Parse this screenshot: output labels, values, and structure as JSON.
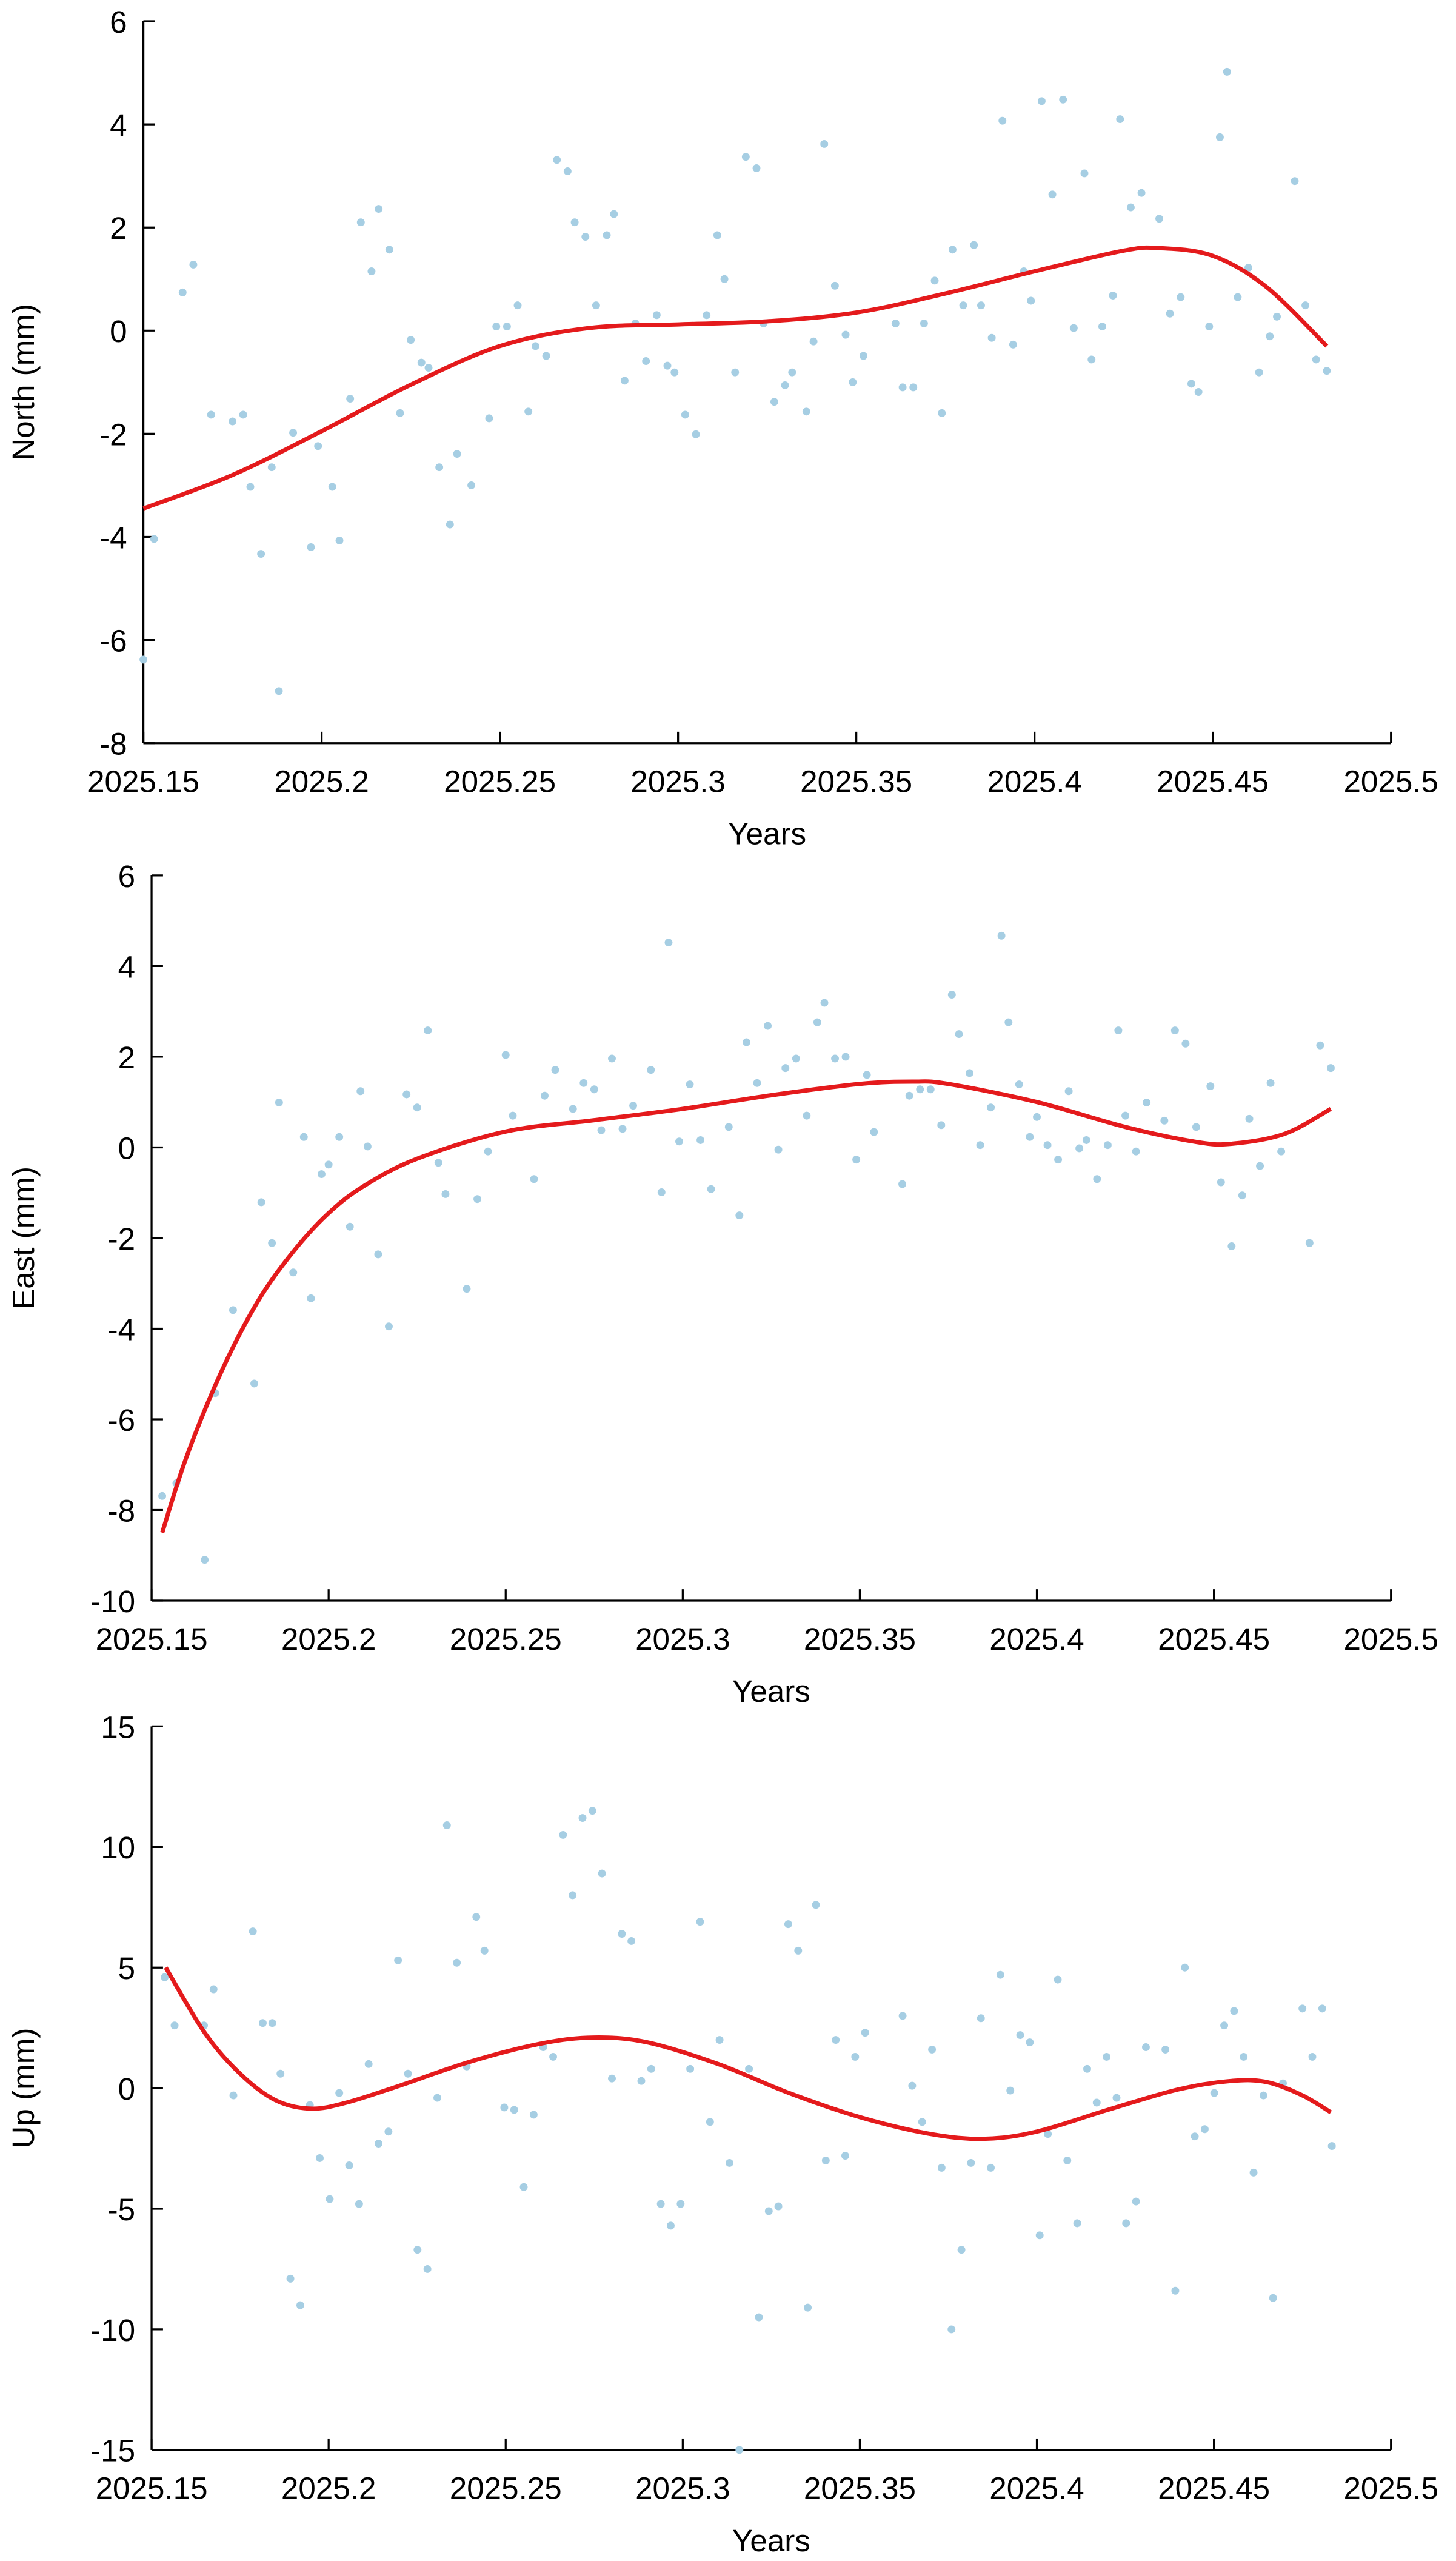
{
  "chart_data": [
    {
      "type": "scatter",
      "xlabel": "Years",
      "ylabel": "North (mm)",
      "xlim": [
        2025.15,
        2025.5
      ],
      "ylim": [
        -8,
        6
      ],
      "xticks": [
        2025.15,
        2025.2,
        2025.25,
        2025.3,
        2025.35,
        2025.4,
        2025.45,
        2025.5
      ],
      "yticks": [
        -8,
        -6,
        -4,
        -2,
        0,
        2,
        4,
        6
      ],
      "series": [
        {
          "type": "scatter",
          "color": "#a6cee3",
          "x": [
            2025.15,
            2025.153,
            2025.161,
            2025.164,
            2025.169,
            2025.175,
            2025.178,
            2025.18,
            2025.183,
            2025.186,
            2025.188,
            2025.192,
            2025.197,
            2025.199,
            2025.203,
            2025.205,
            2025.208,
            2025.211,
            2025.214,
            2025.216,
            2025.219,
            2025.222,
            2025.225,
            2025.228,
            2025.23,
            2025.233,
            2025.236,
            2025.238,
            2025.242,
            2025.247,
            2025.249,
            2025.252,
            2025.255,
            2025.258,
            2025.26,
            2025.263,
            2025.266,
            2025.269,
            2025.271,
            2025.274,
            2025.277,
            2025.28,
            2025.282,
            2025.285,
            2025.288,
            2025.291,
            2025.294,
            2025.297,
            2025.299,
            2025.302,
            2025.305,
            2025.308,
            2025.311,
            2025.313,
            2025.316,
            2025.319,
            2025.322,
            2025.324,
            2025.327,
            2025.33,
            2025.332,
            2025.336,
            2025.338,
            2025.341,
            2025.344,
            2025.347,
            2025.349,
            2025.352,
            2025.361,
            2025.363,
            2025.366,
            2025.369,
            2025.372,
            2025.374,
            2025.377,
            2025.38,
            2025.383,
            2025.385,
            2025.388,
            2025.391,
            2025.394,
            2025.397,
            2025.399,
            2025.402,
            2025.405,
            2025.408,
            2025.411,
            2025.414,
            2025.416,
            2025.419,
            2025.422,
            2025.424,
            2025.427,
            2025.43,
            2025.435,
            2025.438,
            2025.441,
            2025.444,
            2025.446,
            2025.449,
            2025.452,
            2025.454,
            2025.457,
            2025.46,
            2025.463,
            2025.466,
            2025.468,
            2025.473,
            2025.476,
            2025.479,
            2025.482
          ],
          "values": [
            -6.38,
            -4.04,
            0.74,
            1.28,
            -1.63,
            -1.76,
            -1.63,
            -3.03,
            -4.33,
            -2.65,
            -6.99,
            -1.98,
            -4.2,
            -2.24,
            -3.03,
            -4.07,
            -1.32,
            2.1,
            1.15,
            2.36,
            1.57,
            -1.6,
            -0.18,
            -0.62,
            -0.72,
            -2.65,
            -3.76,
            -2.39,
            -3.0,
            -1.7,
            0.08,
            0.08,
            0.49,
            -1.57,
            -0.3,
            -0.49,
            3.31,
            3.09,
            2.1,
            1.82,
            0.49,
            1.85,
            2.26,
            -0.97,
            0.14,
            -0.59,
            0.3,
            -0.68,
            -0.81,
            -1.63,
            -2.01,
            0.3,
            1.85,
            1.0,
            -0.81,
            3.37,
            3.15,
            0.14,
            -1.38,
            -1.06,
            -0.81,
            -1.57,
            -0.21,
            3.62,
            0.87,
            -0.08,
            -1.0,
            -0.49,
            0.14,
            -1.1,
            -1.1,
            0.14,
            0.97,
            -1.6,
            1.57,
            0.49,
            1.66,
            0.49,
            -0.14,
            4.07,
            -0.27,
            1.15,
            0.58,
            4.45,
            2.64,
            4.48,
            0.05,
            3.05,
            -0.56,
            0.08,
            0.68,
            4.1,
            2.39,
            2.67,
            2.17,
            0.33,
            0.65,
            -1.03,
            -1.19,
            0.08,
            3.75,
            5.02,
            0.65,
            1.22,
            -0.81,
            -0.11,
            0.27,
            2.9,
            0.49,
            -0.56,
            -0.78
          ]
        },
        {
          "type": "line",
          "color": "#e41a1c",
          "x": [
            2025.15,
            2025.175,
            2025.2,
            2025.225,
            2025.25,
            2025.275,
            2025.3,
            2025.325,
            2025.35,
            2025.375,
            2025.4,
            2025.425,
            2025.435,
            2025.45,
            2025.465,
            2025.482
          ],
          "values": [
            -3.45,
            -2.8,
            -1.95,
            -1.05,
            -0.3,
            0.05,
            0.12,
            0.18,
            0.35,
            0.72,
            1.15,
            1.55,
            1.6,
            1.45,
            0.85,
            -0.3
          ]
        }
      ]
    },
    {
      "type": "scatter",
      "xlabel": "Years",
      "ylabel": "East (mm)",
      "xlim": [
        2025.15,
        2025.5
      ],
      "ylim": [
        -10,
        6
      ],
      "xticks": [
        2025.15,
        2025.2,
        2025.25,
        2025.3,
        2025.35,
        2025.4,
        2025.45,
        2025.5
      ],
      "yticks": [
        -10,
        -8,
        -6,
        -4,
        -2,
        0,
        2,
        4,
        6
      ],
      "series": [
        {
          "type": "scatter",
          "color": "#a6cee3",
          "x": [
            2025.153,
            2025.157,
            2025.165,
            2025.168,
            2025.173,
            2025.179,
            2025.181,
            2025.184,
            2025.186,
            2025.19,
            2025.193,
            2025.195,
            2025.198,
            2025.2,
            2025.203,
            2025.206,
            2025.209,
            2025.211,
            2025.214,
            2025.217,
            2025.222,
            2025.225,
            2025.228,
            2025.231,
            2025.233,
            2025.239,
            2025.242,
            2025.245,
            2025.25,
            2025.252,
            2025.258,
            2025.261,
            2025.264,
            2025.269,
            2025.272,
            2025.275,
            2025.277,
            2025.28,
            2025.283,
            2025.286,
            2025.291,
            2025.294,
            2025.296,
            2025.299,
            2025.302,
            2025.305,
            2025.308,
            2025.313,
            2025.316,
            2025.318,
            2025.321,
            2025.324,
            2025.327,
            2025.329,
            2025.332,
            2025.335,
            2025.338,
            2025.34,
            2025.343,
            2025.346,
            2025.349,
            2025.352,
            2025.354,
            2025.362,
            2025.364,
            2025.367,
            2025.37,
            2025.373,
            2025.376,
            2025.378,
            2025.381,
            2025.384,
            2025.387,
            2025.39,
            2025.392,
            2025.395,
            2025.398,
            2025.4,
            2025.403,
            2025.406,
            2025.409,
            2025.412,
            2025.414,
            2025.417,
            2025.42,
            2025.423,
            2025.425,
            2025.428,
            2025.431,
            2025.436,
            2025.439,
            2025.442,
            2025.445,
            2025.449,
            2025.452,
            2025.455,
            2025.458,
            2025.46,
            2025.463,
            2025.466,
            2025.469,
            2025.477,
            2025.48,
            2025.483
          ],
          "values": [
            -7.69,
            -7.41,
            -9.1,
            -5.42,
            -3.59,
            -5.21,
            -1.21,
            -2.11,
            0.99,
            -2.76,
            0.23,
            -3.33,
            -0.59,
            -0.38,
            0.23,
            -1.75,
            1.24,
            0.02,
            -2.36,
            -3.95,
            1.17,
            0.88,
            2.58,
            -0.34,
            -1.03,
            -3.12,
            -1.14,
            -0.09,
            2.04,
            0.7,
            -0.7,
            1.14,
            1.71,
            0.85,
            1.42,
            1.28,
            0.38,
            1.96,
            0.41,
            0.92,
            1.71,
            -0.99,
            4.52,
            0.13,
            1.39,
            0.16,
            -0.92,
            0.45,
            -1.5,
            2.32,
            1.42,
            2.68,
            -0.05,
            1.75,
            1.96,
            0.7,
            2.76,
            3.19,
            1.96,
            2.0,
            -0.27,
            1.6,
            0.34,
            -0.81,
            1.14,
            1.28,
            1.28,
            0.49,
            3.37,
            2.5,
            1.64,
            0.05,
            0.88,
            4.67,
            2.76,
            1.39,
            0.23,
            0.67,
            0.05,
            -0.27,
            1.24,
            -0.02,
            0.16,
            -0.7,
            0.05,
            2.58,
            0.7,
            -0.09,
            0.99,
            0.59,
            2.58,
            2.29,
            0.45,
            1.35,
            -0.77,
            -2.18,
            -1.06,
            0.63,
            -0.41,
            1.42,
            -0.09,
            -2.11,
            2.25,
            1.75
          ]
        },
        {
          "type": "line",
          "color": "#e41a1c",
          "x": [
            2025.153,
            2025.16,
            2025.17,
            2025.18,
            2025.19,
            2025.2,
            2025.21,
            2025.225,
            2025.25,
            2025.275,
            2025.3,
            2025.325,
            2025.35,
            2025.365,
            2025.375,
            2025.4,
            2025.425,
            2025.445,
            2025.455,
            2025.47,
            2025.483
          ],
          "values": [
            -8.5,
            -6.8,
            -4.9,
            -3.4,
            -2.3,
            -1.45,
            -0.85,
            -0.25,
            0.35,
            0.6,
            0.85,
            1.15,
            1.4,
            1.45,
            1.4,
            1.0,
            0.45,
            0.12,
            0.08,
            0.3,
            0.85
          ]
        }
      ]
    },
    {
      "type": "scatter",
      "xlabel": "Years",
      "ylabel": "Up (mm)",
      "xlim": [
        2025.15,
        2025.5
      ],
      "ylim": [
        -15,
        15
      ],
      "xticks": [
        2025.15,
        2025.2,
        2025.25,
        2025.3,
        2025.35,
        2025.4,
        2025.45,
        2025.5
      ],
      "yticks": [
        -15,
        -10,
        -5,
        0,
        5,
        10,
        15
      ],
      "series": [
        {
          "type": "scatter",
          "color": "#a6cee3",
          "x": [
            2025.1537,
            2025.1565,
            2025.1648,
            2025.1675,
            2025.1731,
            2025.1786,
            2025.1814,
            2025.1841,
            2025.1864,
            2025.1892,
            2025.192,
            2025.1947,
            2025.1975,
            2025.2003,
            2025.203,
            2025.2058,
            2025.2086,
            2025.2113,
            2025.2141,
            2025.2169,
            2025.2196,
            2025.2224,
            2025.2251,
            2025.2279,
            2025.2307,
            2025.2334,
            2025.2362,
            2025.239,
            2025.2417,
            2025.244,
            2025.2496,
            2025.2524,
            2025.2551,
            2025.2579,
            2025.2606,
            2025.2634,
            2025.2662,
            2025.2689,
            2025.2717,
            2025.2745,
            2025.2772,
            2025.28,
            2025.2828,
            2025.2855,
            2025.2883,
            2025.2911,
            2025.2938,
            2025.2966,
            2025.2994,
            2025.3021,
            2025.3049,
            2025.3077,
            2025.3104,
            2025.3132,
            2025.316,
            2025.3187,
            2025.3215,
            2025.3243,
            2025.327,
            2025.3298,
            2025.3326,
            2025.3353,
            2025.3376,
            2025.3404,
            2025.3432,
            2025.3459,
            2025.3487,
            2025.3515,
            2025.3621,
            2025.3648,
            2025.3676,
            2025.3704,
            2025.3731,
            2025.3759,
            2025.3787,
            2025.3814,
            2025.3842,
            2025.387,
            2025.3897,
            2025.3925,
            2025.3953,
            2025.398,
            2025.4008,
            2025.4031,
            2025.4059,
            2025.4086,
            2025.4114,
            2025.4142,
            2025.4169,
            2025.4197,
            2025.4225,
            2025.4252,
            2025.428,
            2025.4308,
            2025.4363,
            2025.4391,
            2025.4418,
            2025.4446,
            2025.4474,
            2025.4501,
            2025.4529,
            2025.4557,
            2025.4584,
            2025.4612,
            2025.464,
            2025.4667,
            2025.4695,
            2025.475,
            2025.4778,
            2025.4806,
            2025.4833
          ],
          "values": [
            4.6,
            2.6,
            2.6,
            4.1,
            -0.3,
            6.5,
            2.7,
            2.7,
            0.6,
            -7.9,
            -9.0,
            -0.7,
            -2.9,
            -4.6,
            -0.2,
            -3.2,
            -4.8,
            1.0,
            -2.3,
            -1.8,
            5.3,
            0.6,
            -6.7,
            -7.5,
            -0.4,
            10.9,
            5.2,
            0.9,
            7.1,
            5.7,
            -0.8,
            -0.9,
            -4.1,
            -1.1,
            1.7,
            1.3,
            10.5,
            8.0,
            11.2,
            11.5,
            8.9,
            0.4,
            6.4,
            6.1,
            0.3,
            0.8,
            -4.8,
            -5.7,
            -4.8,
            0.8,
            6.9,
            -1.4,
            2.0,
            -3.1,
            -15.0,
            0.8,
            -9.5,
            -5.1,
            -4.9,
            6.8,
            5.7,
            -9.1,
            7.6,
            -3.0,
            2.0,
            -2.8,
            1.3,
            2.3,
            3.0,
            0.1,
            -1.4,
            1.6,
            -3.3,
            -10.0,
            -6.7,
            -3.1,
            2.9,
            -3.3,
            4.7,
            -0.1,
            2.2,
            1.9,
            -6.1,
            -1.9,
            4.5,
            -3.0,
            -5.6,
            0.8,
            -0.6,
            1.3,
            -0.4,
            -5.6,
            -4.7,
            1.7,
            1.6,
            -8.4,
            5.0,
            -2.0,
            -1.7,
            -0.2,
            2.6,
            3.2,
            1.3,
            -3.5,
            -0.3,
            -8.7,
            0.2,
            3.3,
            1.3,
            3.3,
            -2.4
          ]
        },
        {
          "type": "line",
          "color": "#e41a1c",
          "x": [
            2025.154,
            2025.165,
            2025.175,
            2025.185,
            2025.195,
            2025.205,
            2025.22,
            2025.24,
            2025.26,
            2025.275,
            2025.29,
            2025.31,
            2025.33,
            2025.35,
            2025.37,
            2025.385,
            2025.4,
            2025.42,
            2025.44,
            2025.455,
            2025.465,
            2025.475,
            2025.483
          ],
          "values": [
            5.0,
            2.3,
            0.6,
            -0.5,
            -0.85,
            -0.6,
            0.1,
            1.1,
            1.85,
            2.1,
            1.9,
            1.0,
            -0.2,
            -1.2,
            -1.9,
            -2.1,
            -1.8,
            -0.9,
            -0.05,
            0.3,
            0.25,
            -0.3,
            -1.0
          ]
        }
      ]
    }
  ]
}
